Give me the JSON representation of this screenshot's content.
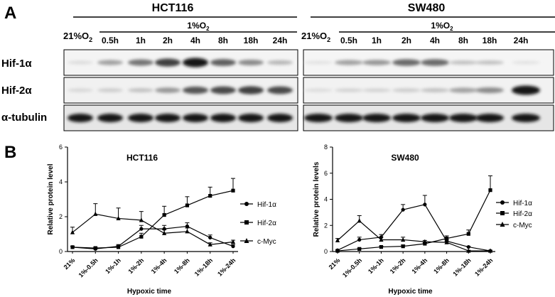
{
  "panels": {
    "a": "A",
    "b": "B"
  },
  "blot": {
    "cell_lines": [
      {
        "name": "HCT116",
        "control_label": "21%O",
        "control_sub": "2",
        "hypoxia_label": "1%O",
        "hypoxia_sub": "2",
        "time_labels": [
          "0.5h",
          "1h",
          "2h",
          "4h",
          "8h",
          "18h",
          "24h"
        ],
        "band_intensity": {
          "hif1a": [
            0.08,
            0.35,
            0.55,
            0.8,
            1.0,
            0.65,
            0.45,
            0.25
          ],
          "hif2a": [
            0.1,
            0.15,
            0.2,
            0.4,
            0.7,
            0.75,
            0.8,
            0.75
          ],
          "tubulin": [
            1,
            1,
            1,
            1,
            1,
            1,
            1,
            1
          ]
        }
      },
      {
        "name": "SW480",
        "control_label": "21%O",
        "control_sub": "2",
        "hypoxia_label": "1%O",
        "hypoxia_sub": "2",
        "time_labels": [
          "0.5h",
          "1h",
          "2h",
          "4h",
          "8h",
          "18h",
          "24h"
        ],
        "band_intensity": {
          "hif1a": [
            0.05,
            0.35,
            0.4,
            0.6,
            0.6,
            0.2,
            0.2,
            0.05
          ],
          "hif2a": [
            0.08,
            0.12,
            0.12,
            0.15,
            0.2,
            0.35,
            0.45,
            1.0
          ],
          "tubulin": [
            1,
            1,
            1,
            1,
            1,
            1,
            1,
            1
          ]
        }
      }
    ],
    "row_labels": [
      "Hif-1α",
      "Hif-2α",
      "α-tubulin"
    ]
  },
  "chart_data": [
    {
      "type": "line",
      "title": "HCT116",
      "ylabel": "Relative protein level",
      "xlabel": "Hypoxic time",
      "ylim": [
        0,
        6
      ],
      "yticks": [
        0,
        2,
        4,
        6
      ],
      "categories": [
        "21%",
        "1%-0.5h",
        "1%-1h",
        "1%-2h",
        "1%-4h",
        "1%-8h",
        "1%-18h",
        "1%-24h"
      ],
      "legend_position": "right",
      "series": [
        {
          "name": "Hif-1α",
          "marker": "circle",
          "values": [
            0.25,
            0.15,
            0.3,
            1.3,
            1.3,
            1.45,
            0.8,
            0.3
          ],
          "errors": [
            0.05,
            0.05,
            0.1,
            0.2,
            0.2,
            0.2,
            0.15,
            0.1
          ]
        },
        {
          "name": "Hif-2α",
          "marker": "square",
          "values": [
            0.25,
            0.2,
            0.25,
            0.85,
            2.1,
            2.65,
            3.2,
            3.5
          ],
          "errors": [
            0.05,
            0.05,
            0.1,
            0.2,
            0.5,
            0.5,
            0.5,
            0.7
          ]
        },
        {
          "name": "c-Myc",
          "marker": "triangle",
          "values": [
            1.1,
            2.15,
            1.9,
            1.8,
            1.05,
            1.15,
            0.4,
            0.55
          ],
          "errors": [
            0.3,
            0.6,
            0.6,
            0.5,
            0.2,
            0.2,
            0.1,
            0.1
          ]
        }
      ]
    },
    {
      "type": "line",
      "title": "SW480",
      "ylabel": "Relative protein levels",
      "xlabel": "Hypoxic time",
      "ylim": [
        0,
        8
      ],
      "yticks": [
        0,
        2,
        4,
        6,
        8
      ],
      "categories": [
        "21%",
        "1%-0.5h",
        "1%-1h",
        "1%-2h",
        "1%-4h",
        "1%-8h",
        "1%-18h",
        "1%-24h"
      ],
      "legend_position": "right",
      "series": [
        {
          "name": "Hif-1α",
          "marker": "circle",
          "values": [
            0.1,
            0.9,
            1.1,
            3.2,
            3.6,
            0.8,
            0.35,
            0.05
          ],
          "errors": [
            0.05,
            0.2,
            0.2,
            0.4,
            0.7,
            0.1,
            0.05,
            0.05
          ]
        },
        {
          "name": "Hif-2α",
          "marker": "square",
          "values": [
            0.05,
            0.2,
            0.35,
            0.4,
            0.6,
            1.0,
            1.35,
            4.7
          ],
          "errors": [
            0.02,
            0.05,
            0.05,
            0.1,
            0.1,
            0.2,
            0.3,
            1.1
          ]
        },
        {
          "name": "c-Myc",
          "marker": "triangle",
          "values": [
            0.85,
            2.35,
            0.9,
            0.9,
            0.75,
            0.7,
            0.05,
            0.05
          ],
          "errors": [
            0.15,
            0.4,
            0.2,
            0.2,
            0.1,
            0.1,
            0.05,
            0.05
          ]
        }
      ]
    }
  ]
}
